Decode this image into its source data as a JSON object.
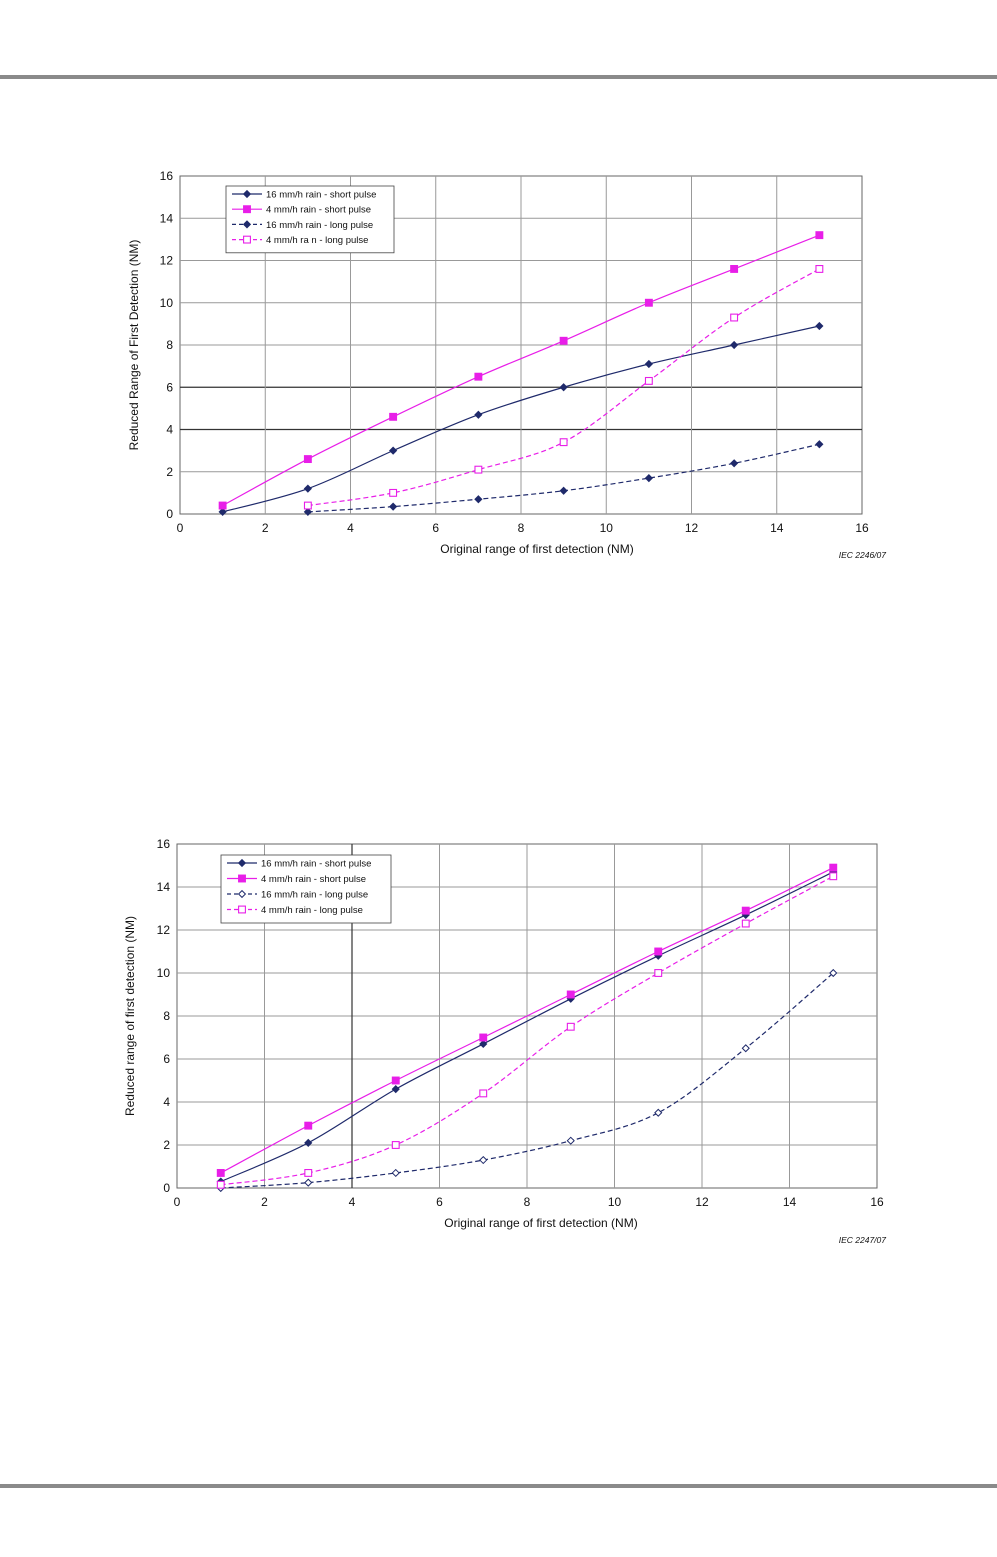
{
  "colors": {
    "navy": "#1f2a6b",
    "magenta": "#e81ee8",
    "grid_dark": "#333333",
    "grid_light": "#999999",
    "frame": "#666666"
  },
  "chart_data": [
    {
      "type": "line",
      "title": "",
      "xlabel": "Original range of first detection   (NM)",
      "ylabel": "Reduced Range of First Detection   (NM)",
      "xlim": [
        0,
        16
      ],
      "ylim": [
        0,
        16
      ],
      "xticks": [
        "0",
        "2",
        "4",
        "6",
        "8",
        "10",
        "12",
        "14",
        "16"
      ],
      "yticks": [
        "0",
        "2",
        "4",
        "6",
        "8",
        "10",
        "12",
        "14",
        "16"
      ],
      "grid": true,
      "legend_position": "top-left",
      "credit": "IEC  2246/07",
      "series": [
        {
          "name": "16 mm/h rain - short pulse",
          "color": "#1f2a6b",
          "dash": "solid",
          "marker": "diamond",
          "x": [
            1,
            3,
            5,
            7,
            9,
            11,
            13,
            15
          ],
          "y": [
            0.1,
            1.2,
            3.0,
            4.7,
            6.0,
            7.1,
            8.0,
            8.9
          ]
        },
        {
          "name": " 4 mm/h rain - short pulse",
          "color": "#e81ee8",
          "dash": "solid",
          "marker": "square",
          "x": [
            1,
            3,
            5,
            7,
            9,
            11,
            13,
            15
          ],
          "y": [
            0.4,
            2.6,
            4.6,
            6.5,
            8.2,
            10.0,
            11.6,
            13.2
          ]
        },
        {
          "name": "16 mm/h rain - long pulse",
          "color": "#1f2a6b",
          "dash": "dashed",
          "marker": "diamond",
          "x": [
            3,
            5,
            7,
            9,
            11,
            13,
            15
          ],
          "y": [
            0.1,
            0.35,
            0.7,
            1.1,
            1.7,
            2.4,
            3.3
          ]
        },
        {
          "name": " 4 mm/h ra n - long pulse",
          "color": "#e81ee8",
          "dash": "dashed",
          "marker": "square-open",
          "x": [
            3,
            5,
            7,
            9,
            11,
            13,
            15
          ],
          "y": [
            0.4,
            1.0,
            2.1,
            3.4,
            6.3,
            9.3,
            11.6
          ]
        }
      ]
    },
    {
      "type": "line",
      "title": "",
      "xlabel": "Original range of first detection   (NM)",
      "ylabel": "Reduced range of first detection   (NM)",
      "xlim": [
        0,
        16
      ],
      "ylim": [
        0,
        16
      ],
      "xticks": [
        "0",
        "2",
        "4",
        "6",
        "8",
        "10",
        "12",
        "14",
        "16"
      ],
      "yticks": [
        "0",
        "2",
        "4",
        "6",
        "8",
        "10",
        "12",
        "14",
        "16"
      ],
      "grid": true,
      "legend_position": "top-left",
      "credit": "IEC  2247/07",
      "series": [
        {
          "name": "16 mm/h rain - short pulse",
          "color": "#1f2a6b",
          "dash": "solid",
          "marker": "diamond",
          "x": [
            1,
            3,
            5,
            7,
            9,
            11,
            13,
            15
          ],
          "y": [
            0.3,
            2.1,
            4.6,
            6.7,
            8.8,
            10.8,
            12.7,
            14.7
          ]
        },
        {
          "name": "4 mm/h rain - short pulse",
          "color": "#e81ee8",
          "dash": "solid",
          "marker": "square",
          "x": [
            1,
            3,
            5,
            7,
            9,
            11,
            13,
            15
          ],
          "y": [
            0.7,
            2.9,
            5.0,
            7.0,
            9.0,
            11.0,
            12.9,
            14.9
          ]
        },
        {
          "name": "16 mm/h rain - long pulse",
          "color": "#1f2a6b",
          "dash": "dashed",
          "marker": "diamond-open",
          "x": [
            1,
            3,
            5,
            7,
            9,
            11,
            13,
            15
          ],
          "y": [
            0.0,
            0.25,
            0.7,
            1.3,
            2.2,
            3.5,
            6.5,
            10.0
          ]
        },
        {
          "name": "4 mm/h rain - long pulse",
          "color": "#e81ee8",
          "dash": "dashed",
          "marker": "square-open",
          "x": [
            1,
            3,
            5,
            7,
            9,
            11,
            13,
            15
          ],
          "y": [
            0.15,
            0.7,
            2.0,
            4.4,
            7.5,
            10.0,
            12.3,
            14.5
          ]
        }
      ]
    }
  ]
}
